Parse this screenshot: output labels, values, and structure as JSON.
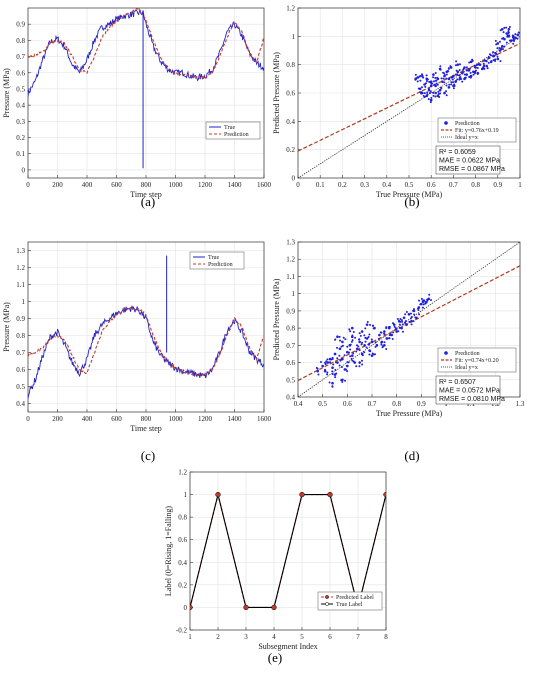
{
  "panels": [
    {
      "id": "a",
      "caption": "(a)",
      "chart_data": {
        "type": "line",
        "xlabel": "Time step",
        "ylabel": "Pressure (MPa)",
        "xlim": [
          0,
          1600
        ],
        "ylim": [
          -0.05,
          1.0
        ],
        "xticks": [
          0,
          200,
          400,
          600,
          800,
          1000,
          1200,
          1400,
          1600
        ],
        "yticks": [
          0,
          0.1,
          0.2,
          0.3,
          0.4,
          0.5,
          0.6,
          0.7,
          0.8,
          0.9
        ],
        "grid": true,
        "legend_position": "bottom-right",
        "series": [
          {
            "name": "True",
            "color": "#2323c8",
            "style": "solid",
            "x": [
              0,
              50,
              100,
              150,
              200,
              250,
              300,
              350,
              400,
              450,
              500,
              550,
              600,
              650,
              700,
              750,
              780,
              800,
              850,
              900,
              950,
              1000,
              1050,
              1100,
              1150,
              1200,
              1250,
              1300,
              1350,
              1400,
              1450,
              1500,
              1550,
              1600
            ],
            "y": [
              0.47,
              0.55,
              0.68,
              0.79,
              0.81,
              0.76,
              0.65,
              0.6,
              0.68,
              0.8,
              0.88,
              0.9,
              0.93,
              0.95,
              0.96,
              0.97,
              0.97,
              0.9,
              0.76,
              0.67,
              0.62,
              0.6,
              0.6,
              0.58,
              0.57,
              0.58,
              0.62,
              0.72,
              0.85,
              0.9,
              0.83,
              0.72,
              0.66,
              0.63
            ]
          },
          {
            "name": "Prediction",
            "color": "#c0392b",
            "style": "dashed",
            "x": [
              0,
              50,
              100,
              150,
              200,
              250,
              300,
              350,
              400,
              450,
              500,
              550,
              600,
              650,
              700,
              750,
              800,
              850,
              900,
              950,
              1000,
              1050,
              1100,
              1150,
              1200,
              1250,
              1300,
              1350,
              1400,
              1450,
              1500,
              1550,
              1600
            ],
            "y": [
              0.7,
              0.71,
              0.73,
              0.78,
              0.8,
              0.78,
              0.7,
              0.62,
              0.6,
              0.7,
              0.82,
              0.88,
              0.92,
              0.95,
              0.97,
              1.0,
              0.92,
              0.8,
              0.69,
              0.63,
              0.6,
              0.59,
              0.58,
              0.57,
              0.57,
              0.6,
              0.7,
              0.82,
              0.92,
              0.85,
              0.73,
              0.66,
              0.82
            ]
          }
        ],
        "annotations": [
          {
            "type": "spike",
            "x": 780,
            "y_from": 0.97,
            "y_to": 0.01,
            "color": "#2323c8"
          }
        ]
      }
    },
    {
      "id": "b",
      "caption": "(b)",
      "chart_data": {
        "type": "scatter",
        "xlabel": "True Pressure (MPa)",
        "ylabel": "Predicted Pressure (MPa)",
        "xlim": [
          0,
          1.0
        ],
        "ylim": [
          0,
          1.2
        ],
        "xticks": [
          0,
          0.1,
          0.2,
          0.3,
          0.4,
          0.5,
          0.6,
          0.7,
          0.8,
          0.9,
          1
        ],
        "yticks": [
          0,
          0.2,
          0.4,
          0.6,
          0.8,
          1,
          1.2
        ],
        "grid": true,
        "legend_position": "bottom-right",
        "legend": [
          "Prediction",
          "Fit: y=0.76x+0.19",
          "Ideal y=x"
        ],
        "fit": {
          "slope": 0.76,
          "intercept": 0.19
        },
        "stats": [
          "R² = 0.6059",
          "MAE = 0.0622 MPa",
          "RMSE = 0.0867 MPa"
        ],
        "points": [
          [
            0.55,
            0.63
          ],
          [
            0.56,
            0.6
          ],
          [
            0.57,
            0.66
          ],
          [
            0.58,
            0.58
          ],
          [
            0.58,
            0.7
          ],
          [
            0.59,
            0.62
          ],
          [
            0.6,
            0.68
          ],
          [
            0.6,
            0.55
          ],
          [
            0.61,
            0.73
          ],
          [
            0.62,
            0.65
          ],
          [
            0.62,
            0.6
          ],
          [
            0.63,
            0.7
          ],
          [
            0.64,
            0.62
          ],
          [
            0.64,
            0.77
          ],
          [
            0.65,
            0.68
          ],
          [
            0.66,
            0.72
          ],
          [
            0.66,
            0.6
          ],
          [
            0.67,
            0.75
          ],
          [
            0.68,
            0.7
          ],
          [
            0.68,
            0.64
          ],
          [
            0.69,
            0.78
          ],
          [
            0.7,
            0.72
          ],
          [
            0.71,
            0.68
          ],
          [
            0.72,
            0.75
          ],
          [
            0.72,
            0.8
          ],
          [
            0.73,
            0.71
          ],
          [
            0.74,
            0.74
          ],
          [
            0.75,
            0.7
          ],
          [
            0.75,
            0.78
          ],
          [
            0.76,
            0.73
          ],
          [
            0.77,
            0.76
          ],
          [
            0.78,
            0.72
          ],
          [
            0.78,
            0.82
          ],
          [
            0.79,
            0.75
          ],
          [
            0.8,
            0.78
          ],
          [
            0.81,
            0.74
          ],
          [
            0.82,
            0.8
          ],
          [
            0.83,
            0.77
          ],
          [
            0.84,
            0.83
          ],
          [
            0.85,
            0.79
          ],
          [
            0.86,
            0.85
          ],
          [
            0.87,
            0.82
          ],
          [
            0.88,
            0.86
          ],
          [
            0.89,
            0.88
          ],
          [
            0.9,
            0.84
          ],
          [
            0.91,
            0.9
          ],
          [
            0.92,
            0.93
          ],
          [
            0.93,
            0.98
          ],
          [
            0.94,
            1.02
          ],
          [
            0.95,
            1.0
          ],
          [
            0.96,
            0.97
          ],
          [
            0.97,
            1.0
          ],
          [
            0.98,
            0.99
          ],
          [
            0.99,
            1.01
          ],
          [
            0.53,
            0.7
          ],
          [
            0.54,
            0.71
          ],
          [
            0.56,
            0.72
          ],
          [
            0.6,
            0.65
          ],
          [
            0.63,
            0.58
          ],
          [
            0.7,
            0.65
          ],
          [
            0.9,
            0.95
          ],
          [
            0.92,
            1.05
          ],
          [
            0.95,
            1.05
          ]
        ]
      }
    },
    {
      "id": "c",
      "caption": "(c)",
      "chart_data": {
        "type": "line",
        "xlabel": "Time step",
        "ylabel": "Pressure (MPa)",
        "xlim": [
          0,
          1600
        ],
        "ylim": [
          0.35,
          1.35
        ],
        "xticks": [
          0,
          200,
          400,
          600,
          800,
          1000,
          1200,
          1400,
          1600
        ],
        "yticks": [
          0.4,
          0.5,
          0.6,
          0.7,
          0.8,
          0.9,
          1,
          1.1,
          1.2,
          1.3
        ],
        "grid": true,
        "legend_position": "top-right",
        "series": [
          {
            "name": "True",
            "color": "#2323c8",
            "style": "solid",
            "x": [
              0,
              50,
              100,
              150,
              200,
              250,
              300,
              350,
              400,
              450,
              500,
              550,
              600,
              650,
              700,
              750,
              800,
              850,
              900,
              950,
              1000,
              1050,
              1100,
              1150,
              1200,
              1250,
              1300,
              1350,
              1400,
              1450,
              1500,
              1550,
              1600
            ],
            "y": [
              0.45,
              0.54,
              0.68,
              0.79,
              0.82,
              0.74,
              0.64,
              0.58,
              0.66,
              0.8,
              0.86,
              0.9,
              0.93,
              0.95,
              0.96,
              0.95,
              0.9,
              0.76,
              0.68,
              0.64,
              0.61,
              0.59,
              0.58,
              0.57,
              0.56,
              0.6,
              0.7,
              0.83,
              0.89,
              0.82,
              0.71,
              0.66,
              0.63
            ]
          },
          {
            "name": "Prediction",
            "color": "#c0392b",
            "style": "dashed",
            "x": [
              0,
              50,
              100,
              150,
              200,
              250,
              300,
              350,
              400,
              450,
              500,
              550,
              600,
              650,
              700,
              750,
              800,
              850,
              900,
              950,
              1000,
              1050,
              1100,
              1150,
              1200,
              1250,
              1300,
              1350,
              1400,
              1450,
              1500,
              1550,
              1600
            ],
            "y": [
              0.69,
              0.7,
              0.73,
              0.78,
              0.8,
              0.77,
              0.68,
              0.6,
              0.58,
              0.7,
              0.82,
              0.88,
              0.92,
              0.95,
              0.96,
              0.96,
              0.92,
              0.8,
              0.7,
              0.64,
              0.6,
              0.59,
              0.58,
              0.57,
              0.57,
              0.6,
              0.69,
              0.8,
              0.9,
              0.85,
              0.73,
              0.66,
              0.8
            ]
          }
        ],
        "annotations": [
          {
            "type": "spike",
            "x": 940,
            "y_from": 0.7,
            "y_to": 1.27,
            "color": "#2323c8"
          }
        ]
      }
    },
    {
      "id": "d",
      "caption": "(d)",
      "chart_data": {
        "type": "scatter",
        "xlabel": "True Pressure (MPa)",
        "ylabel": "Predicted Pressure (MPa)",
        "xlim": [
          0.4,
          1.3
        ],
        "ylim": [
          0.4,
          1.3
        ],
        "xticks": [
          0.4,
          0.5,
          0.6,
          0.7,
          0.8,
          0.9,
          1,
          1.1,
          1.2,
          1.3
        ],
        "yticks": [
          0.4,
          0.5,
          0.6,
          0.7,
          0.8,
          0.9,
          1,
          1.1,
          1.2,
          1.3
        ],
        "grid": true,
        "legend_position": "bottom-right",
        "legend": [
          "Prediction",
          "Fit: y=0.74x+0.20",
          "Ideal y=x"
        ],
        "fit": {
          "slope": 0.74,
          "intercept": 0.2
        },
        "stats": [
          "R² = 0.6507",
          "MAE = 0.0572 MPa",
          "RMSE = 0.0810 MPa"
        ],
        "points": [
          [
            0.5,
            0.58
          ],
          [
            0.51,
            0.55
          ],
          [
            0.52,
            0.6
          ],
          [
            0.53,
            0.62
          ],
          [
            0.54,
            0.57
          ],
          [
            0.55,
            0.65
          ],
          [
            0.55,
            0.53
          ],
          [
            0.56,
            0.6
          ],
          [
            0.57,
            0.68
          ],
          [
            0.58,
            0.62
          ],
          [
            0.58,
            0.72
          ],
          [
            0.59,
            0.56
          ],
          [
            0.6,
            0.66
          ],
          [
            0.61,
            0.7
          ],
          [
            0.62,
            0.64
          ],
          [
            0.62,
            0.75
          ],
          [
            0.63,
            0.6
          ],
          [
            0.64,
            0.68
          ],
          [
            0.65,
            0.72
          ],
          [
            0.66,
            0.65
          ],
          [
            0.66,
            0.78
          ],
          [
            0.67,
            0.7
          ],
          [
            0.68,
            0.74
          ],
          [
            0.69,
            0.67
          ],
          [
            0.7,
            0.72
          ],
          [
            0.71,
            0.8
          ],
          [
            0.72,
            0.7
          ],
          [
            0.73,
            0.76
          ],
          [
            0.74,
            0.72
          ],
          [
            0.75,
            0.78
          ],
          [
            0.76,
            0.74
          ],
          [
            0.77,
            0.8
          ],
          [
            0.78,
            0.76
          ],
          [
            0.79,
            0.82
          ],
          [
            0.8,
            0.78
          ],
          [
            0.81,
            0.84
          ],
          [
            0.82,
            0.8
          ],
          [
            0.83,
            0.86
          ],
          [
            0.84,
            0.82
          ],
          [
            0.85,
            0.88
          ],
          [
            0.86,
            0.84
          ],
          [
            0.87,
            0.9
          ],
          [
            0.88,
            0.86
          ],
          [
            0.89,
            0.92
          ],
          [
            0.9,
            0.94
          ],
          [
            0.91,
            0.96
          ],
          [
            0.92,
            0.95
          ],
          [
            0.93,
            0.97
          ],
          [
            0.6,
            0.58
          ],
          [
            0.65,
            0.6
          ],
          [
            0.7,
            0.64
          ],
          [
            0.75,
            0.7
          ],
          [
            0.56,
            0.75
          ],
          [
            0.62,
            0.8
          ],
          [
            0.68,
            0.82
          ],
          [
            0.54,
            0.48
          ],
          [
            0.58,
            0.5
          ],
          [
            0.48,
            0.55
          ]
        ]
      }
    },
    {
      "id": "e",
      "caption": "(e)",
      "chart_data": {
        "type": "line",
        "xlabel": "Subsegment Index",
        "ylabel": "Label (0=Rising, 1=Falling)",
        "xlim": [
          1,
          8
        ],
        "ylim": [
          -0.2,
          1.2
        ],
        "xticks": [
          1,
          2,
          3,
          4,
          5,
          6,
          7,
          8
        ],
        "yticks": [
          -0.2,
          0,
          0.2,
          0.4,
          0.6,
          0.8,
          1,
          1.2
        ],
        "grid": true,
        "legend_position": "bottom-right",
        "categories": [
          1,
          2,
          3,
          4,
          5,
          6,
          7,
          8
        ],
        "series": [
          {
            "name": "Predicted Label",
            "color": "#c0392b",
            "style": "dashed",
            "values": [
              0,
              1,
              0,
              0,
              1,
              1,
              0,
              1
            ]
          },
          {
            "name": "True Label",
            "color": "#000000",
            "style": "solid",
            "values": [
              0,
              1,
              0,
              0,
              1,
              1,
              0,
              1
            ]
          }
        ]
      }
    }
  ]
}
